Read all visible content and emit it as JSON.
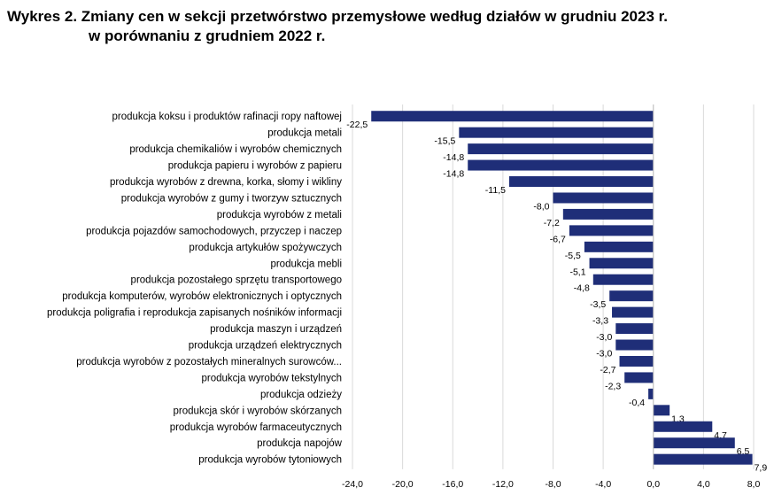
{
  "chart_data": {
    "type": "bar",
    "orientation": "horizontal",
    "title_line1": "Wykres 2. Zmiany cen w sekcji przetwórstwo przemysłowe według działów w grudniu 2023 r.",
    "title_line2": "w porównaniu z grudniem 2022 r.",
    "categories": [
      "produkcja koksu i produktów rafinacji ropy naftowej",
      "produkcja metali",
      "produkcja chemikaliów i wyrobów chemicznych",
      "produkcja papieru i wyrobów z papieru",
      "produkcja wyrobów z drewna, korka, słomy i wikliny",
      "produkcja wyrobów z gumy i tworzyw sztucznych",
      "produkcja wyrobów z metali",
      "produkcja pojazdów samochodowych, przyczep i naczep",
      "produkcja artykułów spożywczych",
      "produkcja mebli",
      "produkcja pozostałego sprzętu transportowego",
      "produkcja komputerów, wyrobów elektronicznych i optycznych",
      "produkcja poligrafia i reprodukcja zapisanych nośników informacji",
      "produkcja maszyn i urządzeń",
      "produkcja urządzeń elektrycznych",
      "produkcja wyrobów z pozostałych mineralnych surowców...",
      "produkcja wyrobów tekstylnych",
      "produkcja odzieży",
      "produkcja skór i wyrobów skórzanych",
      "produkcja wyrobów farmaceutycznych",
      "produkcja napojów",
      "produkcja wyrobów tytoniowych"
    ],
    "values": [
      -22.5,
      -15.5,
      -14.8,
      -14.8,
      -11.5,
      -8.0,
      -7.2,
      -6.7,
      -5.5,
      -5.1,
      -4.8,
      -3.5,
      -3.3,
      -3.0,
      -3.0,
      -2.7,
      -2.3,
      -0.4,
      1.3,
      4.7,
      6.5,
      7.9
    ],
    "value_labels": [
      "-22,5",
      "-15,5",
      "-14,8",
      "-14,8",
      "-11,5",
      "-8,0",
      "-7,2",
      "-6,7",
      "-5,5",
      "-5,1",
      "-4,8",
      "-3,5",
      "-3,3",
      "-3,0",
      "-3,0",
      "-2,7",
      "-2,3",
      "-0,4",
      "1,3",
      "4,7",
      "6,5",
      "7,9"
    ],
    "xlim": [
      -24,
      8
    ],
    "xticks": [
      -24,
      -20,
      -16,
      -12,
      -8,
      -4,
      0,
      4,
      8
    ],
    "xtick_labels": [
      "-24,0",
      "-20,0",
      "-16,0",
      "-12,0",
      "-8,0",
      "-4,0",
      "0,0",
      "4,0",
      "8,0"
    ],
    "bar_color": "#1f2e78",
    "grid": "vertical"
  }
}
